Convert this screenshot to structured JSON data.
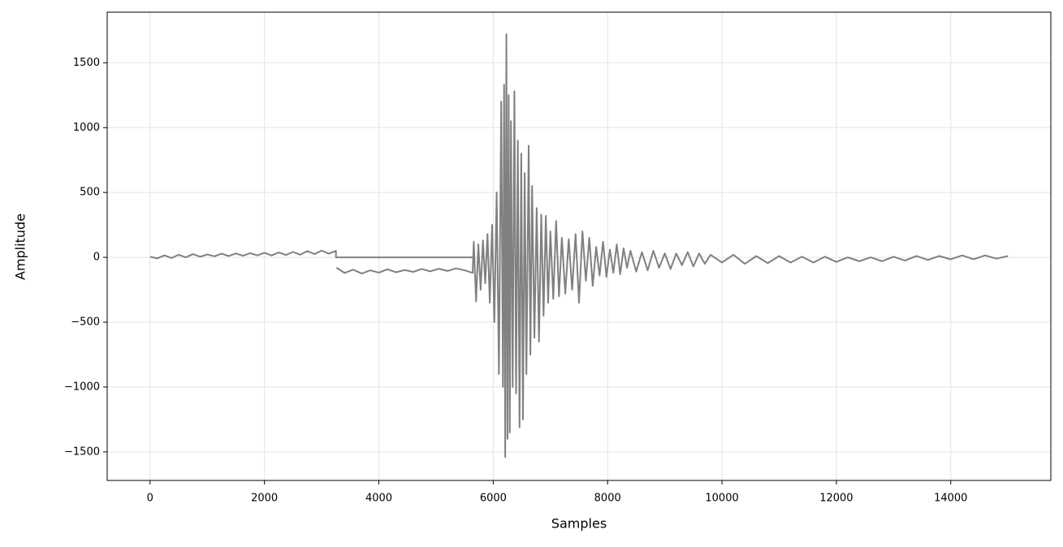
{
  "chart_data": {
    "type": "line",
    "x_label": "Samples",
    "y_label": "Amplitude",
    "color": "#808080",
    "grid": true,
    "xlim": [
      -750,
      15750
    ],
    "ylim": [
      -1720,
      1890
    ],
    "xticks": [
      0,
      2000,
      4000,
      6000,
      8000,
      10000,
      12000,
      14000
    ],
    "yticks": [
      {
        "value": -1500,
        "label": "−1500"
      },
      {
        "value": -1000,
        "label": "−1000"
      },
      {
        "value": -500,
        "label": "−500"
      },
      0,
      500,
      1000,
      1500
    ],
    "x": [
      0,
      125,
      250,
      375,
      500,
      625,
      750,
      875,
      1000,
      1125,
      1250,
      1375,
      1500,
      1625,
      1750,
      1875,
      2000,
      2125,
      2250,
      2375,
      2500,
      2625,
      2750,
      2875,
      3000,
      3125,
      3250,
      3250,
      5650,
      5650,
      3260,
      3400,
      3550,
      3700,
      3850,
      4000,
      4150,
      4300,
      4450,
      4600,
      4750,
      4900,
      5050,
      5200,
      5350,
      5500,
      5640,
      5660,
      5700,
      5740,
      5780,
      5820,
      5860,
      5900,
      5940,
      5980,
      6020,
      6060,
      6100,
      6140,
      6170,
      6190,
      6210,
      6230,
      6250,
      6270,
      6290,
      6310,
      6340,
      6370,
      6400,
      6430,
      6460,
      6490,
      6520,
      6550,
      6580,
      6620,
      6650,
      6680,
      6720,
      6760,
      6800,
      6840,
      6880,
      6920,
      6960,
      7000,
      7050,
      7100,
      7150,
      7200,
      7260,
      7320,
      7380,
      7440,
      7500,
      7560,
      7620,
      7680,
      7740,
      7800,
      7860,
      7920,
      7980,
      8040,
      8100,
      8160,
      8220,
      8280,
      8340,
      8400,
      8500,
      8600,
      8700,
      8800,
      8900,
      9000,
      9100,
      9200,
      9300,
      9400,
      9500,
      9600,
      9700,
      9800,
      10000,
      10200,
      10400,
      10600,
      10800,
      11000,
      11200,
      11400,
      11600,
      11800,
      12000,
      12200,
      12400,
      12600,
      12800,
      13000,
      13200,
      13400,
      13600,
      13800,
      14000,
      14200,
      14400,
      14600,
      14800,
      15000
    ],
    "values": [
      5,
      -8,
      15,
      -5,
      20,
      0,
      25,
      5,
      22,
      8,
      28,
      10,
      30,
      12,
      32,
      15,
      35,
      14,
      38,
      18,
      42,
      20,
      48,
      25,
      52,
      28,
      50,
      0,
      0,
      null,
      -80,
      -120,
      -95,
      -125,
      -100,
      -118,
      -92,
      -115,
      -98,
      -112,
      -90,
      -108,
      -88,
      -105,
      -85,
      -100,
      -120,
      120,
      -340,
      100,
      -250,
      130,
      -200,
      180,
      -350,
      250,
      -500,
      500,
      -900,
      1200,
      -1000,
      1330,
      -1540,
      1720,
      -1400,
      1250,
      -1350,
      1050,
      -1000,
      1280,
      -1050,
      900,
      -1310,
      800,
      -1250,
      650,
      -900,
      860,
      -750,
      550,
      -620,
      380,
      -650,
      330,
      -450,
      320,
      -350,
      200,
      -320,
      280,
      -300,
      150,
      -280,
      140,
      -250,
      180,
      -350,
      200,
      -180,
      150,
      -220,
      80,
      -140,
      120,
      -150,
      60,
      -120,
      100,
      -130,
      70,
      -80,
      50,
      -110,
      40,
      -100,
      50,
      -80,
      30,
      -90,
      30,
      -60,
      40,
      -70,
      30,
      -50,
      20,
      -40,
      20,
      -50,
      10,
      -45,
      10,
      -40,
      5,
      -40,
      5,
      -35,
      0,
      -30,
      0,
      -30,
      5,
      -25,
      10,
      -20,
      10,
      -15,
      15,
      -15,
      15,
      -10,
      10
    ]
  }
}
